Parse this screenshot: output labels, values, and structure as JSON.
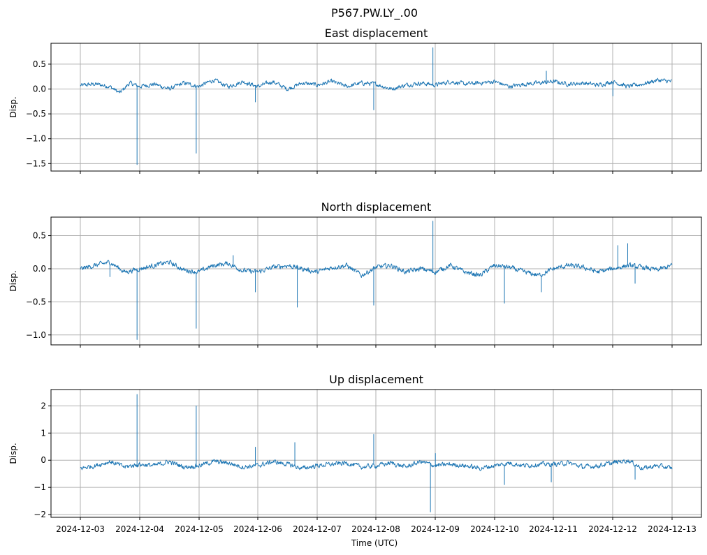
{
  "figure": {
    "title": "P567.PW.LY_.00",
    "xlabel": "Time (UTC)"
  },
  "x_ticks": [
    "2024-12-03",
    "2024-12-04",
    "2024-12-05",
    "2024-12-06",
    "2024-12-07",
    "2024-12-08",
    "2024-12-09",
    "2024-12-10",
    "2024-12-11",
    "2024-12-12",
    "2024-12-13"
  ],
  "colors": {
    "line": "#1f77b4",
    "grid": "#b0b0b0"
  },
  "chart_data": [
    {
      "type": "line",
      "title": "East displacement",
      "ylabel": "Disp.",
      "xlim": [
        "2024-12-03",
        "2024-12-13"
      ],
      "ylim": [
        -1.65,
        0.92
      ],
      "yticks": [
        0.5,
        0.0,
        -0.5,
        -1.0,
        -1.5
      ],
      "ytick_labels": [
        "0.5",
        "0.0",
        "−0.5",
        "−1.0",
        "−1.5"
      ],
      "grid": true,
      "series": [
        {
          "baseline": [
            [
              "2024-12-03T00:00",
              0.07
            ],
            [
              "2024-12-03T06:00",
              0.1
            ],
            [
              "2024-12-03T12:00",
              0.05
            ],
            [
              "2024-12-03T16:00",
              -0.08
            ],
            [
              "2024-12-03T20:00",
              0.12
            ],
            [
              "2024-12-04T00:00",
              0.05
            ],
            [
              "2024-12-04T06:00",
              0.1
            ],
            [
              "2024-12-04T12:00",
              0.0
            ],
            [
              "2024-12-04T18:00",
              0.12
            ],
            [
              "2024-12-05T00:00",
              0.05
            ],
            [
              "2024-12-05T06:00",
              0.18
            ],
            [
              "2024-12-05T12:00",
              0.05
            ],
            [
              "2024-12-05T18:00",
              0.15
            ],
            [
              "2024-12-06T00:00",
              0.05
            ],
            [
              "2024-12-06T06:00",
              0.15
            ],
            [
              "2024-12-06T12:00",
              0.0
            ],
            [
              "2024-12-06T18:00",
              0.12
            ],
            [
              "2024-12-07T00:00",
              0.08
            ],
            [
              "2024-12-07T06:00",
              0.15
            ],
            [
              "2024-12-07T12:00",
              0.05
            ],
            [
              "2024-12-07T18:00",
              0.12
            ],
            [
              "2024-12-08T00:00",
              0.1
            ],
            [
              "2024-12-08T06:00",
              0.0
            ],
            [
              "2024-12-08T12:00",
              0.08
            ],
            [
              "2024-12-08T18:00",
              0.12
            ],
            [
              "2024-12-09T00:00",
              0.08
            ],
            [
              "2024-12-09T06:00",
              0.15
            ],
            [
              "2024-12-09T12:00",
              0.1
            ],
            [
              "2024-12-09T18:00",
              0.12
            ],
            [
              "2024-12-10T00:00",
              0.15
            ],
            [
              "2024-12-10T06:00",
              0.05
            ],
            [
              "2024-12-10T12:00",
              0.1
            ],
            [
              "2024-12-10T18:00",
              0.12
            ],
            [
              "2024-12-11T00:00",
              0.15
            ],
            [
              "2024-12-11T06:00",
              0.1
            ],
            [
              "2024-12-11T12:00",
              0.12
            ],
            [
              "2024-12-11T18:00",
              0.08
            ],
            [
              "2024-12-12T00:00",
              0.15
            ],
            [
              "2024-12-12T06:00",
              0.05
            ],
            [
              "2024-12-12T12:00",
              0.1
            ],
            [
              "2024-12-12T18:00",
              0.18
            ],
            [
              "2024-12-13T00:00",
              0.15
            ]
          ],
          "noise": 0.035,
          "spikes": [
            [
              "2024-12-03T23:00",
              -1.52
            ],
            [
              "2024-12-04T23:00",
              -1.29
            ],
            [
              "2024-12-05T23:00",
              -0.26
            ],
            [
              "2024-12-07T23:00",
              -0.42
            ],
            [
              "2024-12-08T23:00",
              0.83
            ],
            [
              "2024-12-10T21:00",
              0.36
            ],
            [
              "2024-12-12T00:00",
              -0.14
            ]
          ]
        }
      ]
    },
    {
      "type": "line",
      "title": "North displacement",
      "ylabel": "Disp.",
      "xlim": [
        "2024-12-03",
        "2024-12-13"
      ],
      "ylim": [
        -1.15,
        0.78
      ],
      "yticks": [
        0.5,
        0.0,
        -0.5,
        -1.0
      ],
      "ytick_labels": [
        "0.5",
        "0.0",
        "−0.5",
        "−1.0"
      ],
      "grid": true,
      "series": [
        {
          "baseline": [
            [
              "2024-12-03T00:00",
              0.0
            ],
            [
              "2024-12-03T06:00",
              0.05
            ],
            [
              "2024-12-03T12:00",
              0.1
            ],
            [
              "2024-12-03T18:00",
              -0.05
            ],
            [
              "2024-12-04T00:00",
              0.0
            ],
            [
              "2024-12-04T06:00",
              0.05
            ],
            [
              "2024-12-04T12:00",
              0.1
            ],
            [
              "2024-12-04T18:00",
              -0.02
            ],
            [
              "2024-12-05T00:00",
              -0.05
            ],
            [
              "2024-12-05T06:00",
              0.05
            ],
            [
              "2024-12-05T12:00",
              0.08
            ],
            [
              "2024-12-05T18:00",
              -0.03
            ],
            [
              "2024-12-06T00:00",
              -0.05
            ],
            [
              "2024-12-06T06:00",
              0.02
            ],
            [
              "2024-12-06T12:00",
              0.05
            ],
            [
              "2024-12-06T18:00",
              0.0
            ],
            [
              "2024-12-07T00:00",
              -0.05
            ],
            [
              "2024-12-07T06:00",
              0.02
            ],
            [
              "2024-12-07T12:00",
              0.05
            ],
            [
              "2024-12-07T18:00",
              -0.1
            ],
            [
              "2024-12-08T00:00",
              0.02
            ],
            [
              "2024-12-08T06:00",
              0.05
            ],
            [
              "2024-12-08T12:00",
              -0.05
            ],
            [
              "2024-12-08T18:00",
              0.0
            ],
            [
              "2024-12-09T00:00",
              -0.05
            ],
            [
              "2024-12-09T06:00",
              0.05
            ],
            [
              "2024-12-09T12:00",
              -0.05
            ],
            [
              "2024-12-09T18:00",
              -0.1
            ],
            [
              "2024-12-10T00:00",
              0.05
            ],
            [
              "2024-12-10T06:00",
              0.02
            ],
            [
              "2024-12-10T12:00",
              -0.05
            ],
            [
              "2024-12-10T18:00",
              -0.1
            ],
            [
              "2024-12-11T00:00",
              0.0
            ],
            [
              "2024-12-11T06:00",
              0.05
            ],
            [
              "2024-12-11T12:00",
              0.02
            ],
            [
              "2024-12-11T18:00",
              -0.05
            ],
            [
              "2024-12-12T00:00",
              0.0
            ],
            [
              "2024-12-12T06:00",
              0.05
            ],
            [
              "2024-12-12T12:00",
              0.02
            ],
            [
              "2024-12-12T18:00",
              -0.02
            ],
            [
              "2024-12-13T00:00",
              0.05
            ]
          ],
          "noise": 0.03,
          "spikes": [
            [
              "2024-12-03T12:00",
              -0.12
            ],
            [
              "2024-12-03T23:00",
              -1.07
            ],
            [
              "2024-12-04T23:00",
              -0.9
            ],
            [
              "2024-12-05T14:00",
              0.2
            ],
            [
              "2024-12-05T23:00",
              -0.35
            ],
            [
              "2024-12-06T16:00",
              -0.58
            ],
            [
              "2024-12-07T23:00",
              -0.55
            ],
            [
              "2024-12-08T23:00",
              0.72
            ],
            [
              "2024-12-10T04:00",
              -0.52
            ],
            [
              "2024-12-10T19:00",
              -0.35
            ],
            [
              "2024-12-12T02:00",
              0.35
            ],
            [
              "2024-12-12T06:00",
              0.38
            ],
            [
              "2024-12-12T09:00",
              -0.22
            ]
          ]
        }
      ]
    },
    {
      "type": "line",
      "title": "Up displacement",
      "ylabel": "Disp.",
      "xlim": [
        "2024-12-03",
        "2024-12-13"
      ],
      "ylim": [
        -2.1,
        2.6
      ],
      "yticks": [
        2,
        1,
        0,
        -1,
        -2
      ],
      "ytick_labels": [
        "2",
        "1",
        "0",
        "−1",
        "−2"
      ],
      "grid": true,
      "series": [
        {
          "baseline": [
            [
              "2024-12-03T00:00",
              -0.3
            ],
            [
              "2024-12-03T06:00",
              -0.2
            ],
            [
              "2024-12-03T12:00",
              -0.05
            ],
            [
              "2024-12-03T18:00",
              -0.25
            ],
            [
              "2024-12-04T00:00",
              -0.15
            ],
            [
              "2024-12-04T06:00",
              -0.2
            ],
            [
              "2024-12-04T12:00",
              -0.05
            ],
            [
              "2024-12-04T18:00",
              -0.25
            ],
            [
              "2024-12-05T00:00",
              -0.2
            ],
            [
              "2024-12-05T06:00",
              -0.05
            ],
            [
              "2024-12-05T12:00",
              -0.1
            ],
            [
              "2024-12-05T18:00",
              -0.25
            ],
            [
              "2024-12-06T00:00",
              -0.2
            ],
            [
              "2024-12-06T06:00",
              -0.05
            ],
            [
              "2024-12-06T12:00",
              -0.15
            ],
            [
              "2024-12-06T18:00",
              -0.3
            ],
            [
              "2024-12-07T00:00",
              -0.2
            ],
            [
              "2024-12-07T06:00",
              -0.15
            ],
            [
              "2024-12-07T12:00",
              -0.1
            ],
            [
              "2024-12-07T18:00",
              -0.25
            ],
            [
              "2024-12-08T00:00",
              -0.2
            ],
            [
              "2024-12-08T06:00",
              -0.1
            ],
            [
              "2024-12-08T12:00",
              -0.25
            ],
            [
              "2024-12-08T18:00",
              -0.05
            ],
            [
              "2024-12-09T00:00",
              -0.2
            ],
            [
              "2024-12-09T06:00",
              -0.15
            ],
            [
              "2024-12-09T12:00",
              -0.2
            ],
            [
              "2024-12-09T18:00",
              -0.3
            ],
            [
              "2024-12-10T00:00",
              -0.2
            ],
            [
              "2024-12-10T06:00",
              -0.1
            ],
            [
              "2024-12-10T12:00",
              -0.2
            ],
            [
              "2024-12-10T18:00",
              -0.15
            ],
            [
              "2024-12-11T00:00",
              -0.15
            ],
            [
              "2024-12-11T06:00",
              -0.1
            ],
            [
              "2024-12-11T12:00",
              -0.25
            ],
            [
              "2024-12-11T18:00",
              -0.2
            ],
            [
              "2024-12-12T00:00",
              -0.1
            ],
            [
              "2024-12-12T06:00",
              0.0
            ],
            [
              "2024-12-12T12:00",
              -0.3
            ],
            [
              "2024-12-12T18:00",
              -0.2
            ],
            [
              "2024-12-13T00:00",
              -0.3
            ]
          ],
          "noise": 0.07,
          "spikes": [
            [
              "2024-12-03T23:00",
              2.42
            ],
            [
              "2024-12-04T23:00",
              2.0
            ],
            [
              "2024-12-05T23:00",
              0.48
            ],
            [
              "2024-12-06T15:00",
              0.65
            ],
            [
              "2024-12-07T23:00",
              0.95
            ],
            [
              "2024-12-08T22:00",
              -1.9
            ],
            [
              "2024-12-09T00:00",
              0.25
            ],
            [
              "2024-12-10T04:00",
              -0.9
            ],
            [
              "2024-12-10T23:00",
              -0.8
            ],
            [
              "2024-12-12T09:00",
              -0.7
            ]
          ]
        }
      ]
    }
  ]
}
